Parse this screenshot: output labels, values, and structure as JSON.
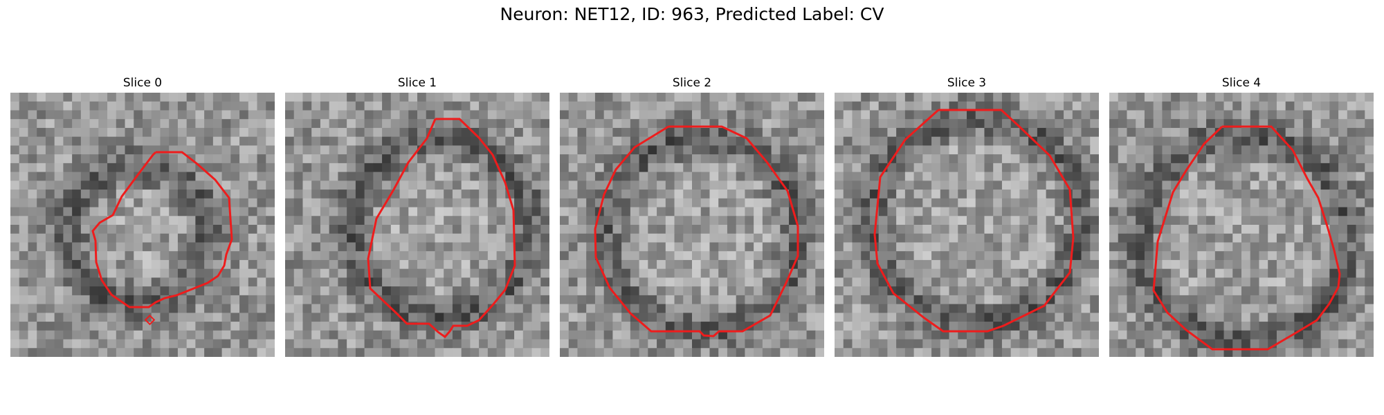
{
  "figure": {
    "title": "Neuron: NET12, ID: 963, Predicted Label: CV"
  },
  "colors": {
    "contour": "#ee1c1c",
    "background": "#ffffff"
  },
  "panels": [
    {
      "label": "Slice 0"
    },
    {
      "label": "Slice 1"
    },
    {
      "label": "Slice 2"
    },
    {
      "label": "Slice 3"
    },
    {
      "label": "Slice 4"
    }
  ]
}
